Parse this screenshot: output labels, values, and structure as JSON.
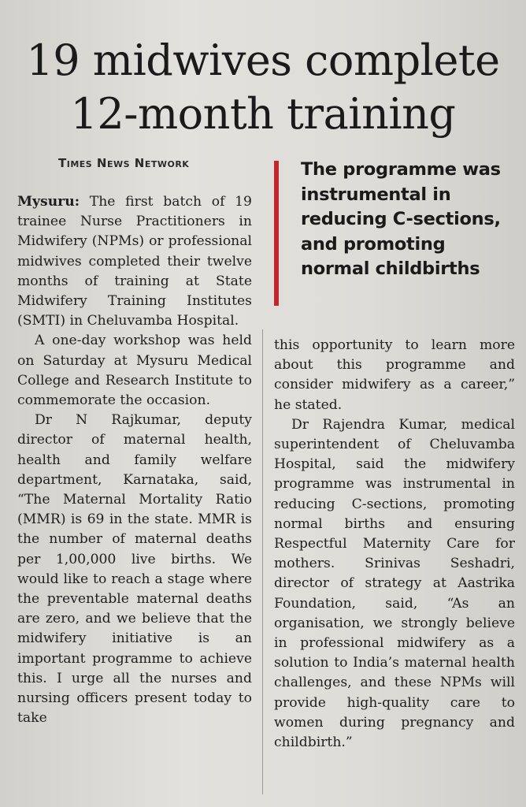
{
  "article": {
    "headline_line1": "19 midwives complete",
    "headline_line2": "12-month training",
    "byline": "Times News Network",
    "pull_quote": "The programme was instrumental in reducing C-sections, and promoting normal childbirths",
    "dateline": "Mysuru:",
    "paragraphs": [
      "The first batch of 19 trainee Nurse Practitioners in Midwifery (NPMs) or professional midwives completed their twelve months of training at State Midwifery Training Institutes (SMTI) in Cheluvamba Hospital.",
      "A one-day workshop was held on Saturday at Mysuru Medical College and Research Institute to commemorate the occasion.",
      "Dr N Rajkumar, deputy director of maternal health, health and family welfare department, Karnataka, said, “The Maternal Mortality Ratio (MMR) is 69 in the state. MMR is the number of maternal deaths per 1,00,000 live births. We would like to reach a stage where the preventable maternal deaths are zero, and we believe that the midwifery initiative is an important programme to achieve this. I urge all the nurses and nursing officers present today to take",
      "this opportunity to learn more about this programme and consider midwifery as a career,” he stated.",
      "Dr Rajendra Kumar, medical superintendent of Cheluvamba Hospital, said the midwifery programme was instrumental in reducing C-sections, promoting normal births and ensuring Respectful Maternity Care for mothers. Srinivas Seshadri, director of strategy at Aastrika Foundation, said, “As an organisation, we strongly believe in professional midwifery as a solution to India’s maternal health challenges, and these NPMs will provide high-quality care to women during pregnancy and childbirth.”"
    ]
  }
}
